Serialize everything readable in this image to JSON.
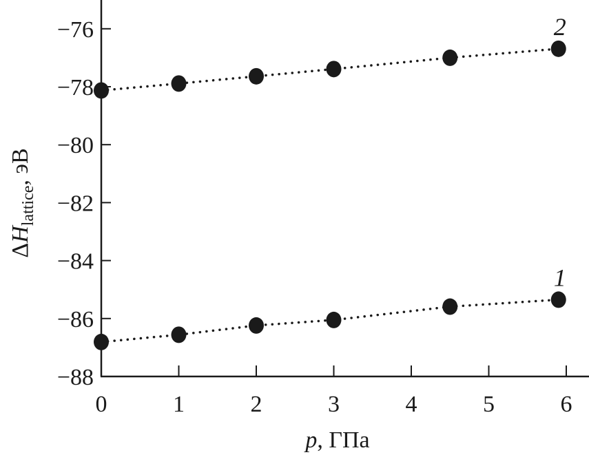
{
  "chart_data": {
    "type": "scatter",
    "xlabel": "p, ГПа",
    "xlabel_parts": {
      "var": "p",
      "unit": ", ГПа"
    },
    "ylabel": "ΔH_lattice, эВ",
    "ylabel_parts": {
      "delta": "Δ",
      "var": "H",
      "sub": "lattice",
      "unit": ", эВ"
    },
    "xlim": [
      0,
      6.3
    ],
    "ylim": [
      -88,
      -75
    ],
    "xticks": [
      0,
      1,
      2,
      3,
      4,
      5,
      6
    ],
    "xtick_labels": [
      "0",
      "1",
      "2",
      "3",
      "4",
      "5",
      "6"
    ],
    "yticks": [
      -88,
      -86,
      -84,
      -82,
      -80,
      -78,
      -76
    ],
    "ytick_labels": [
      "−88",
      "−86",
      "−84",
      "−82",
      "−80",
      "−78",
      "−76"
    ],
    "grid": false,
    "line_style": "dotted",
    "color": "#1a1a1a",
    "series": [
      {
        "name": "1",
        "x": [
          0,
          1,
          2,
          3,
          4.5,
          5.9
        ],
        "y": [
          -86.81,
          -86.56,
          -86.24,
          -86.05,
          -85.59,
          -85.35
        ]
      },
      {
        "name": "2",
        "x": [
          0,
          1,
          2,
          3,
          4.5,
          5.9
        ],
        "y": [
          -78.13,
          -77.89,
          -77.64,
          -77.39,
          -77.0,
          -76.69
        ]
      }
    ]
  }
}
